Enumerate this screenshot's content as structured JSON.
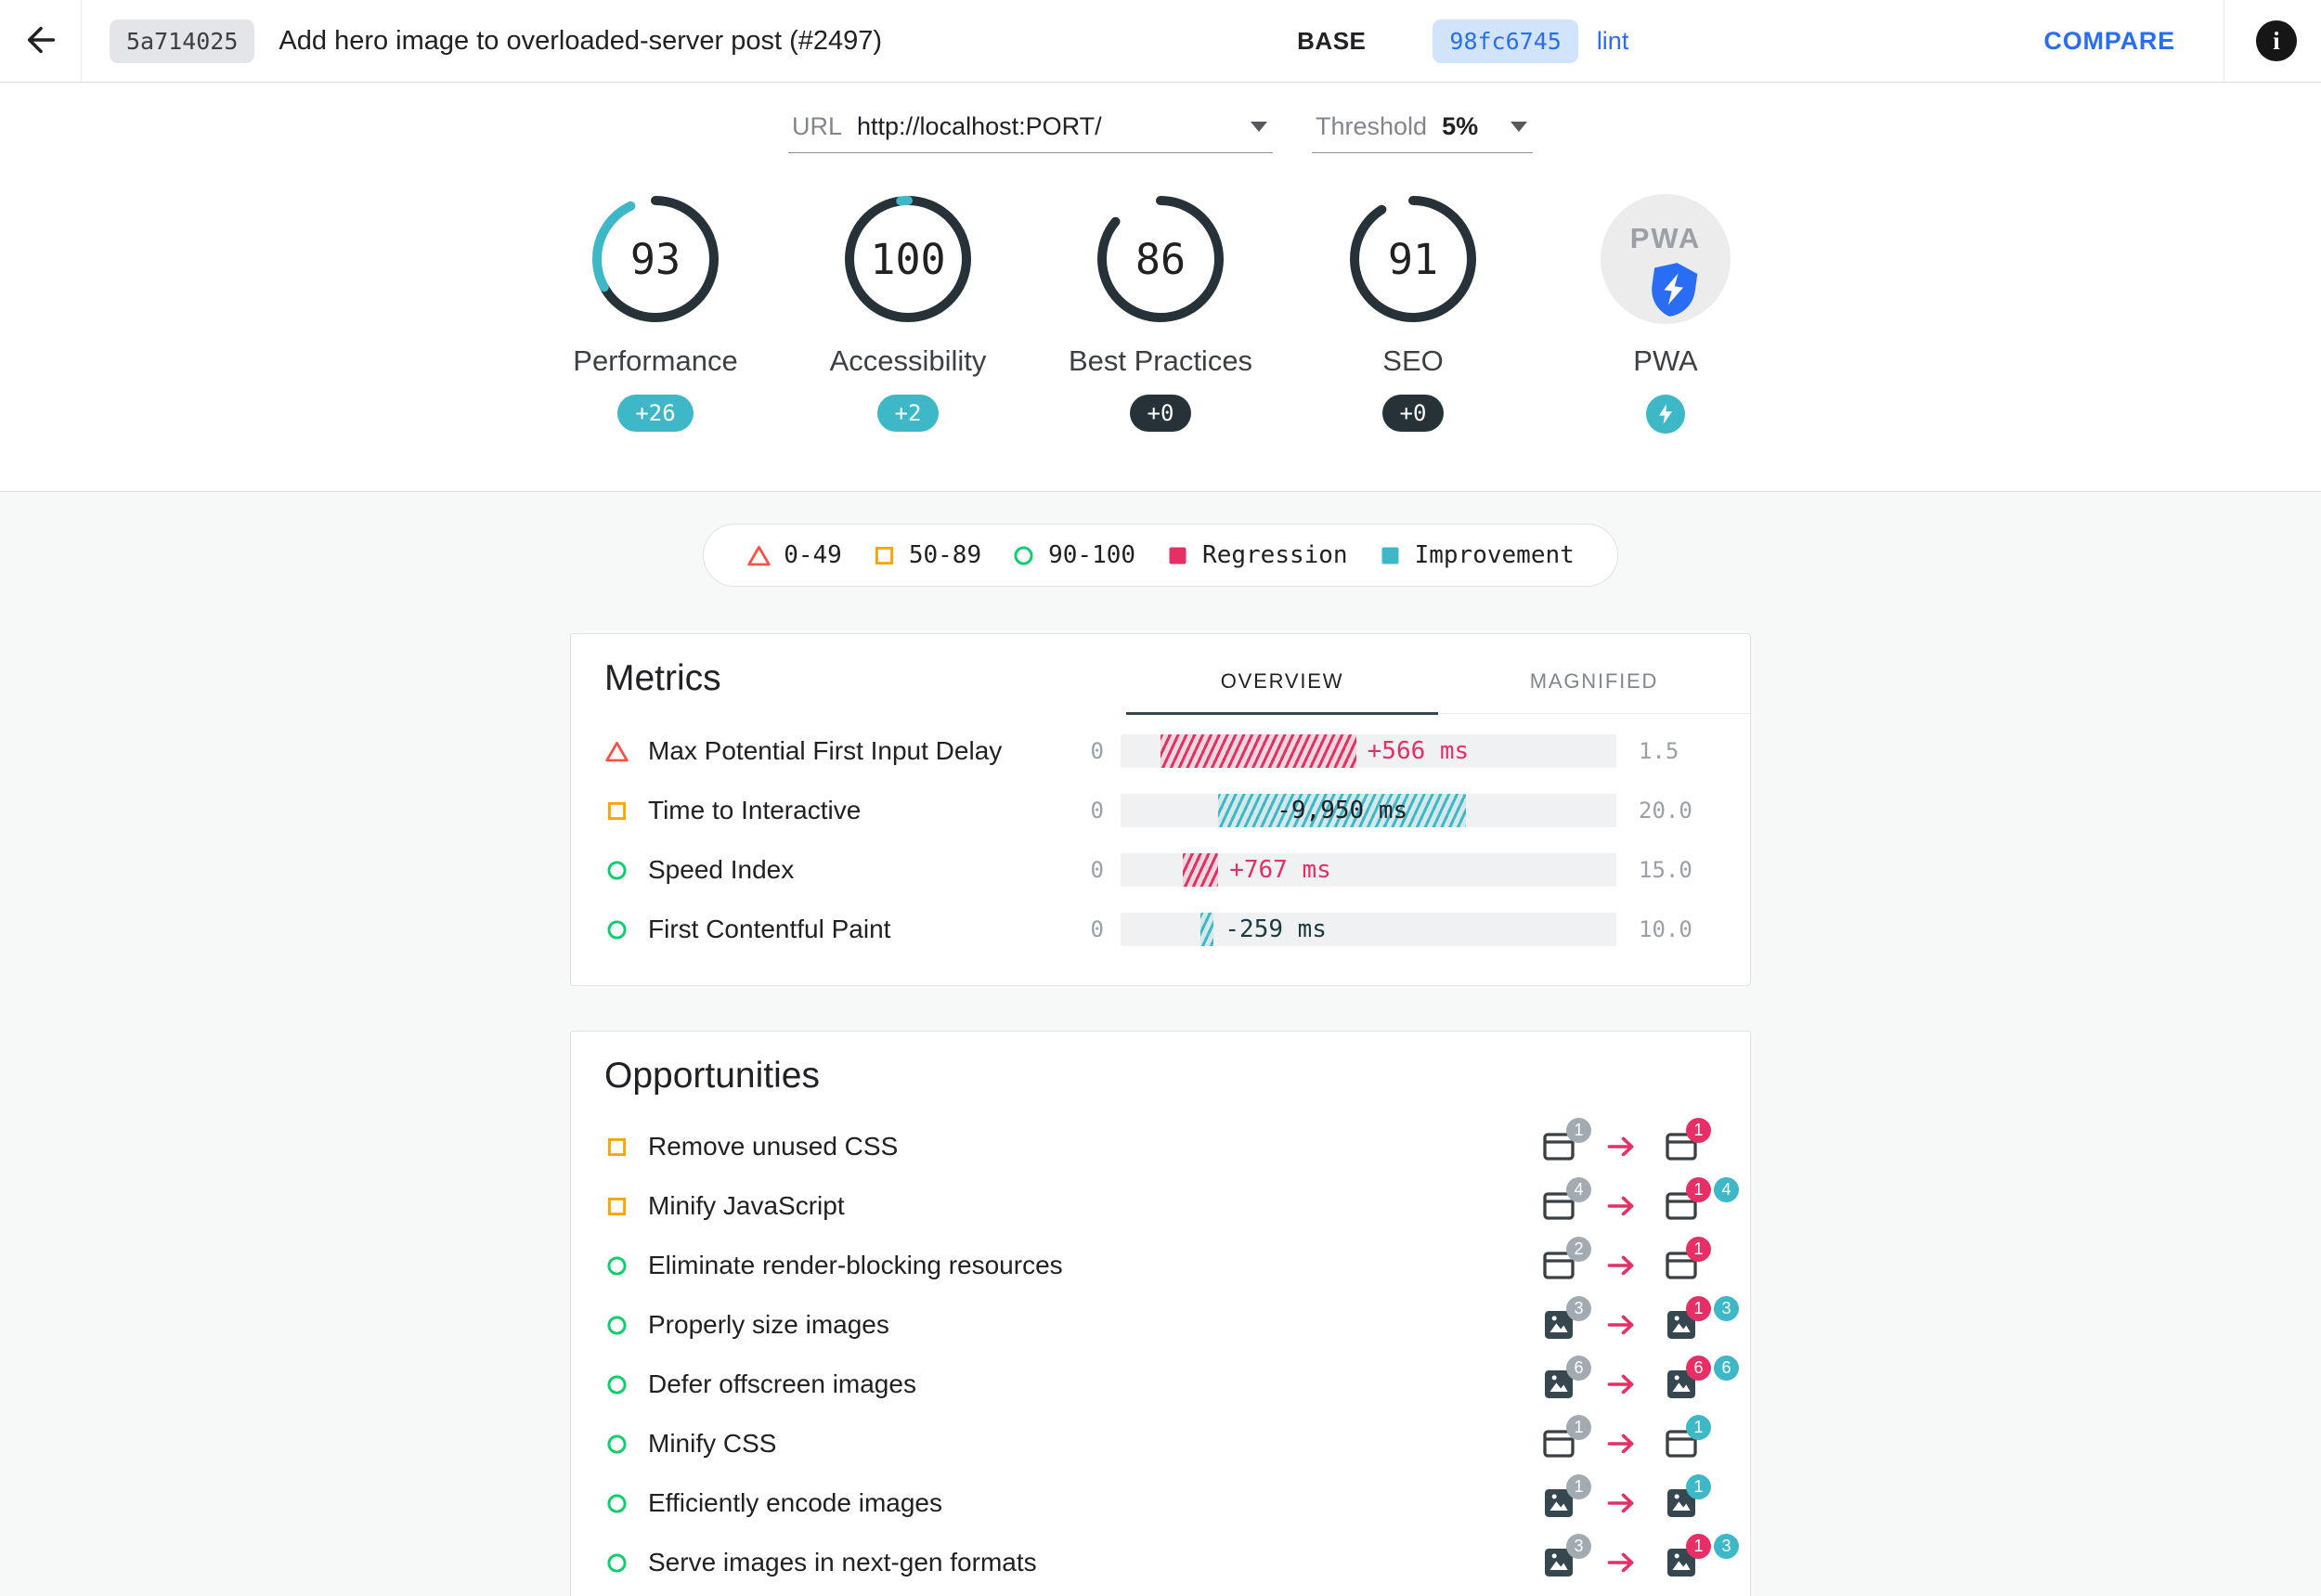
{
  "header": {
    "base_hash": "5a714025",
    "title": "Add hero image to overloaded-server post (#2497)",
    "base_label": "BASE",
    "compare_hash": "98fc6745",
    "compare_branch": "lint",
    "compare_button": "COMPARE",
    "info_glyph": "i"
  },
  "controls": {
    "url_label": "URL",
    "url_value": "http://localhost:PORT/",
    "threshold_label": "Threshold",
    "threshold_value": "5%"
  },
  "gauges": [
    {
      "score": "93",
      "delta": 26,
      "label": "Performance",
      "badge": "+26",
      "badge_type": "improvement"
    },
    {
      "score": "100",
      "delta": 2,
      "label": "Accessibility",
      "badge": "+2",
      "badge_type": "improvement"
    },
    {
      "score": "86",
      "delta": 0,
      "label": "Best Practices",
      "badge": "+0",
      "badge_type": "neutral"
    },
    {
      "score": "91",
      "delta": 0,
      "label": "SEO",
      "badge": "+0",
      "badge_type": "neutral"
    },
    {
      "type": "pwa",
      "logo": "PWA",
      "label": "PWA",
      "badge": "",
      "badge_type": "icon"
    }
  ],
  "legend": [
    {
      "type": "fail",
      "label": "0-49"
    },
    {
      "type": "average",
      "label": "50-89"
    },
    {
      "type": "pass",
      "label": "90-100"
    },
    {
      "type": "regression",
      "label": "Regression"
    },
    {
      "type": "improvement",
      "label": "Improvement"
    }
  ],
  "metrics": {
    "title": "Metrics",
    "tabs": [
      {
        "label": "OVERVIEW",
        "active": true
      },
      {
        "label": "MAGNIFIED",
        "active": false
      }
    ],
    "rows": [
      {
        "status": "fail",
        "label": "Max Potential First Input Delay",
        "min": "0",
        "max": "1.5",
        "bar": {
          "type": "regression",
          "left_pct": 8,
          "width_pct": 39.5,
          "value": "+566 ms",
          "value_pos": "after"
        }
      },
      {
        "status": "average",
        "label": "Time to Interactive",
        "min": "0",
        "max": "20.0",
        "bar": {
          "type": "improvement",
          "left_pct": 19.7,
          "width_pct": 50,
          "value": "-9,950 ms",
          "value_pos": "inside"
        }
      },
      {
        "status": "pass",
        "label": "Speed Index",
        "min": "0",
        "max": "15.0",
        "bar": {
          "type": "regression",
          "left_pct": 12.5,
          "width_pct": 7.2,
          "value": "+767 ms",
          "value_pos": "after"
        }
      },
      {
        "status": "pass",
        "label": "First Contentful Paint",
        "min": "0",
        "max": "10.0",
        "bar": {
          "type": "improvement",
          "left_pct": 16.1,
          "width_pct": 2.7,
          "value": "-259 ms",
          "value_pos": "after"
        }
      }
    ]
  },
  "opportunities": {
    "title": "Opportunities",
    "rows": [
      {
        "status": "average",
        "icon": "doc",
        "label": "Remove unused CSS",
        "base_count": "1",
        "compare_badges": [
          {
            "type": "regression",
            "value": "1"
          }
        ]
      },
      {
        "status": "average",
        "icon": "doc",
        "label": "Minify JavaScript",
        "base_count": "4",
        "compare_badges": [
          {
            "type": "regression",
            "value": "1"
          },
          {
            "type": "improvement",
            "value": "4"
          }
        ]
      },
      {
        "status": "pass",
        "icon": "doc",
        "label": "Eliminate render-blocking resources",
        "base_count": "2",
        "compare_badges": [
          {
            "type": "regression",
            "value": "1"
          }
        ]
      },
      {
        "status": "pass",
        "icon": "image",
        "label": "Properly size images",
        "base_count": "3",
        "compare_badges": [
          {
            "type": "regression",
            "value": "1"
          },
          {
            "type": "improvement",
            "value": "3"
          }
        ]
      },
      {
        "status": "pass",
        "icon": "image",
        "label": "Defer offscreen images",
        "base_count": "6",
        "compare_badges": [
          {
            "type": "regression",
            "value": "6"
          },
          {
            "type": "improvement",
            "value": "6"
          }
        ]
      },
      {
        "status": "pass",
        "icon": "doc",
        "label": "Minify CSS",
        "base_count": "1",
        "compare_badges": [
          {
            "type": "improvement",
            "value": "1"
          }
        ]
      },
      {
        "status": "pass",
        "icon": "image",
        "label": "Efficiently encode images",
        "base_count": "1",
        "compare_badges": [
          {
            "type": "improvement",
            "value": "1"
          }
        ]
      },
      {
        "status": "pass",
        "icon": "image",
        "label": "Serve images in next-gen formats",
        "base_count": "3",
        "compare_badges": [
          {
            "type": "regression",
            "value": "1"
          },
          {
            "type": "improvement",
            "value": "3"
          }
        ]
      }
    ]
  },
  "colors": {
    "accent_blue": "#2a6df5",
    "fail": "#ff4e42",
    "average": "#ffa400",
    "pass": "#0cce6b",
    "regression": "#e52f65",
    "improvement": "#3eb7c6",
    "gauge_ring": "#263238",
    "icon_dark": "#3c4043"
  }
}
